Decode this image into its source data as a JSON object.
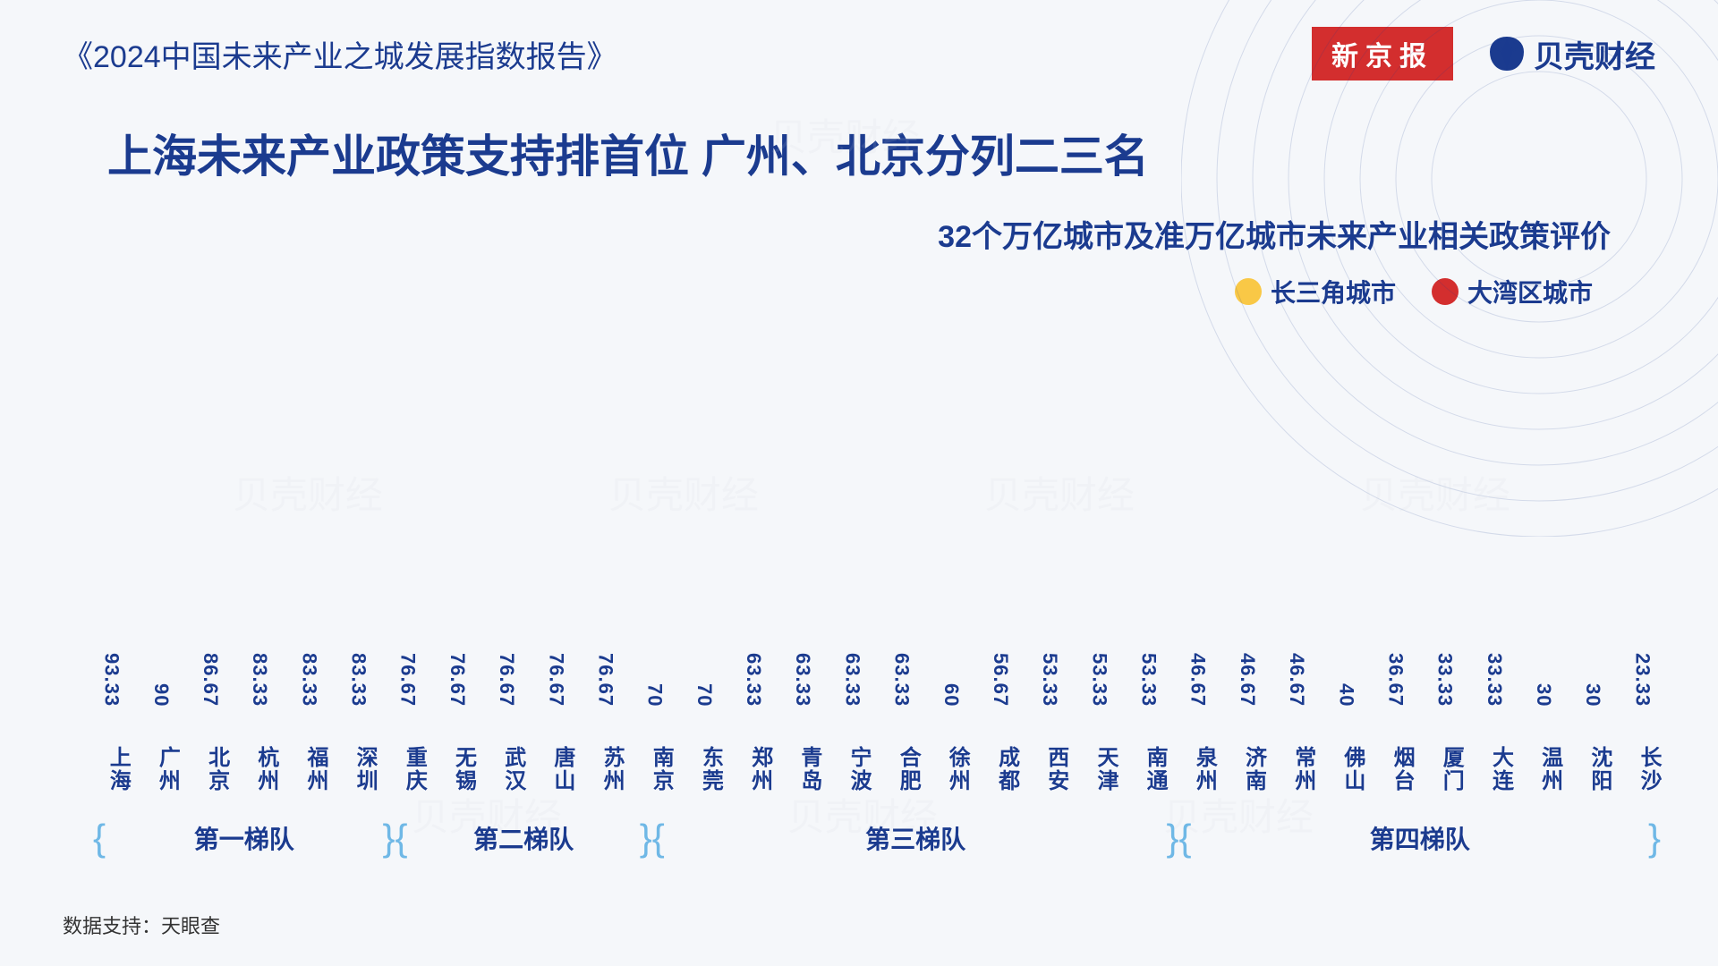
{
  "header_title": "《2024中国未来产业之城发展指数报告》",
  "logo_xinjing": "新京报",
  "logo_beike": "贝壳财经",
  "main_title": "上海未来产业政策支持排首位 广州、北京分列二三名",
  "subtitle": "32个万亿城市及准万亿城市未来产业相关政策评价",
  "legend": [
    {
      "label": "长三角城市",
      "color": "#f9c846"
    },
    {
      "label": "大湾区城市",
      "color": "#d32e2e"
    }
  ],
  "chart": {
    "type": "bar",
    "ymax": 100,
    "bar_default_gradient": [
      "#3b6fd6",
      "#8fb5f0"
    ],
    "yrd_gradient": [
      "#f9c846",
      "#fde29b"
    ],
    "gba_gradient": [
      "#d32e2e",
      "#f08a8a"
    ],
    "label_color": "#1b3b8f",
    "value_fontsize": 22,
    "xlabel_fontsize": 24,
    "bars": [
      {
        "city": "上海",
        "value": 93.33,
        "region": "yrd"
      },
      {
        "city": "广州",
        "value": 90,
        "region": "gba"
      },
      {
        "city": "北京",
        "value": 86.67,
        "region": "default"
      },
      {
        "city": "杭州",
        "value": 83.33,
        "region": "yrd"
      },
      {
        "city": "福州",
        "value": 83.33,
        "region": "default"
      },
      {
        "city": "深圳",
        "value": 83.33,
        "region": "gba"
      },
      {
        "city": "重庆",
        "value": 76.67,
        "region": "default"
      },
      {
        "city": "无锡",
        "value": 76.67,
        "region": "yrd"
      },
      {
        "city": "武汉",
        "value": 76.67,
        "region": "default"
      },
      {
        "city": "唐山",
        "value": 76.67,
        "region": "default"
      },
      {
        "city": "苏州",
        "value": 76.67,
        "region": "yrd"
      },
      {
        "city": "南京",
        "value": 70,
        "region": "yrd"
      },
      {
        "city": "东莞",
        "value": 70,
        "region": "gba"
      },
      {
        "city": "郑州",
        "value": 63.33,
        "region": "default"
      },
      {
        "city": "青岛",
        "value": 63.33,
        "region": "default"
      },
      {
        "city": "宁波",
        "value": 63.33,
        "region": "yrd"
      },
      {
        "city": "合肥",
        "value": 63.33,
        "region": "yrd"
      },
      {
        "city": "徐州",
        "value": 60,
        "region": "yrd"
      },
      {
        "city": "成都",
        "value": 56.67,
        "region": "default"
      },
      {
        "city": "西安",
        "value": 53.33,
        "region": "default"
      },
      {
        "city": "天津",
        "value": 53.33,
        "region": "default"
      },
      {
        "city": "南通",
        "value": 53.33,
        "region": "yrd"
      },
      {
        "city": "泉州",
        "value": 46.67,
        "region": "default"
      },
      {
        "city": "济南",
        "value": 46.67,
        "region": "default"
      },
      {
        "city": "常州",
        "value": 46.67,
        "region": "yrd"
      },
      {
        "city": "佛山",
        "value": 40,
        "region": "gba"
      },
      {
        "city": "烟台",
        "value": 36.67,
        "region": "default"
      },
      {
        "city": "厦门",
        "value": 33.33,
        "region": "default"
      },
      {
        "city": "大连",
        "value": 33.33,
        "region": "default"
      },
      {
        "city": "温州",
        "value": 30,
        "region": "yrd"
      },
      {
        "city": "沈阳",
        "value": 30,
        "region": "default"
      },
      {
        "city": "长沙",
        "value": 23.33,
        "region": "default"
      }
    ],
    "tiers": [
      {
        "label": "第一梯队",
        "span": 6
      },
      {
        "label": "第二梯队",
        "span": 5
      },
      {
        "label": "第三梯队",
        "span": 11
      },
      {
        "label": "第四梯队",
        "span": 10
      }
    ]
  },
  "footer": "数据支持：天眼查",
  "watermark_text": "贝壳财经"
}
